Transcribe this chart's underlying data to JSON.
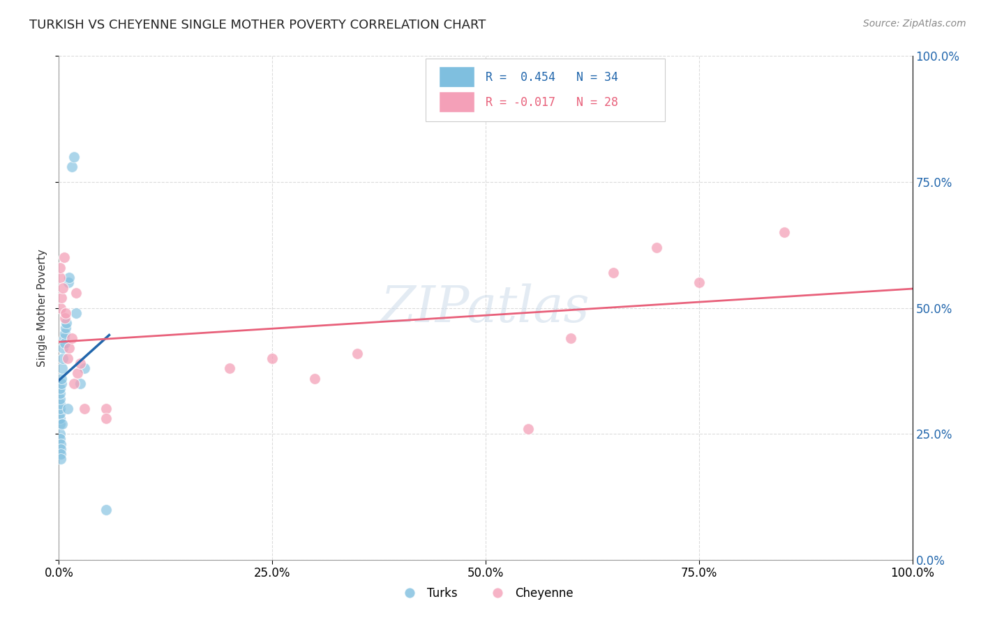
{
  "title": "TURKISH VS CHEYENNE SINGLE MOTHER POVERTY CORRELATION CHART",
  "source": "Source: ZipAtlas.com",
  "ylabel": "Single Mother Poverty",
  "turks_R": 0.454,
  "turks_N": 34,
  "cheyenne_R": -0.017,
  "cheyenne_N": 28,
  "turks_color": "#7fbfdf",
  "cheyenne_color": "#f4a0b8",
  "turks_line_color": "#2166ac",
  "cheyenne_line_color": "#e8607a",
  "background_color": "#ffffff",
  "grid_color": "#cccccc",
  "turks_x": [
    0.1,
    0.1,
    0.1,
    0.1,
    0.1,
    0.1,
    0.1,
    0.1,
    0.1,
    0.1,
    0.2,
    0.2,
    0.2,
    0.2,
    0.3,
    0.3,
    0.4,
    0.4,
    0.5,
    0.5,
    0.6,
    0.7,
    0.7,
    0.8,
    0.9,
    1.0,
    1.1,
    1.2,
    1.5,
    1.8,
    2.0,
    2.5,
    3.0,
    5.5
  ],
  "turks_y": [
    27.0,
    28.0,
    29.0,
    30.0,
    31.0,
    32.0,
    33.0,
    34.0,
    25.0,
    24.0,
    23.0,
    22.0,
    21.0,
    20.0,
    35.0,
    36.0,
    27.0,
    38.0,
    40.0,
    42.0,
    44.0,
    43.0,
    45.0,
    46.0,
    47.0,
    30.0,
    55.0,
    56.0,
    78.0,
    80.0,
    49.0,
    35.0,
    38.0,
    10.0
  ],
  "cheyenne_x": [
    0.1,
    0.1,
    0.2,
    0.3,
    0.5,
    0.6,
    0.7,
    0.8,
    1.0,
    1.2,
    1.5,
    1.8,
    2.0,
    2.2,
    2.5,
    3.0,
    5.5,
    5.5,
    20.0,
    25.0,
    30.0,
    35.0,
    55.0,
    60.0,
    65.0,
    70.0,
    75.0,
    85.0
  ],
  "cheyenne_y": [
    56.0,
    58.0,
    50.0,
    52.0,
    54.0,
    60.0,
    48.0,
    49.0,
    40.0,
    42.0,
    44.0,
    35.0,
    53.0,
    37.0,
    39.0,
    30.0,
    30.0,
    28.0,
    38.0,
    40.0,
    36.0,
    41.0,
    26.0,
    44.0,
    57.0,
    62.0,
    55.0,
    65.0
  ],
  "ytick_labels": [
    "0.0%",
    "25.0%",
    "50.0%",
    "75.0%",
    "100.0%"
  ],
  "ytick_values": [
    0.0,
    25.0,
    50.0,
    75.0,
    100.0
  ],
  "xtick_labels": [
    "0.0%",
    "25.0%",
    "50.0%",
    "75.0%",
    "100.0%"
  ],
  "xtick_values": [
    0.0,
    25.0,
    50.0,
    75.0,
    100.0
  ],
  "watermark": "ZIPatlas",
  "xlim": [
    0,
    100
  ],
  "ylim": [
    0,
    100
  ]
}
